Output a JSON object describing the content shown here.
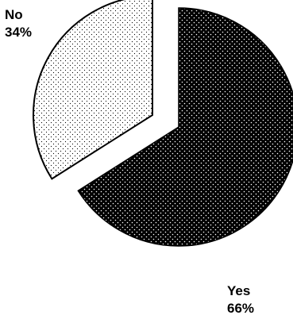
{
  "chart_data": {
    "type": "pie",
    "title": "",
    "exploded": true,
    "slices": [
      {
        "label": "Yes",
        "percent_label": "66%",
        "value": 66,
        "fill_color": "#000000",
        "dot_color": "#ffffff",
        "pattern": "dotted"
      },
      {
        "label": "No",
        "percent_label": "34%",
        "value": 34,
        "fill_color": "#ffffff",
        "dot_color": "#000000",
        "pattern": "dotted"
      }
    ]
  }
}
